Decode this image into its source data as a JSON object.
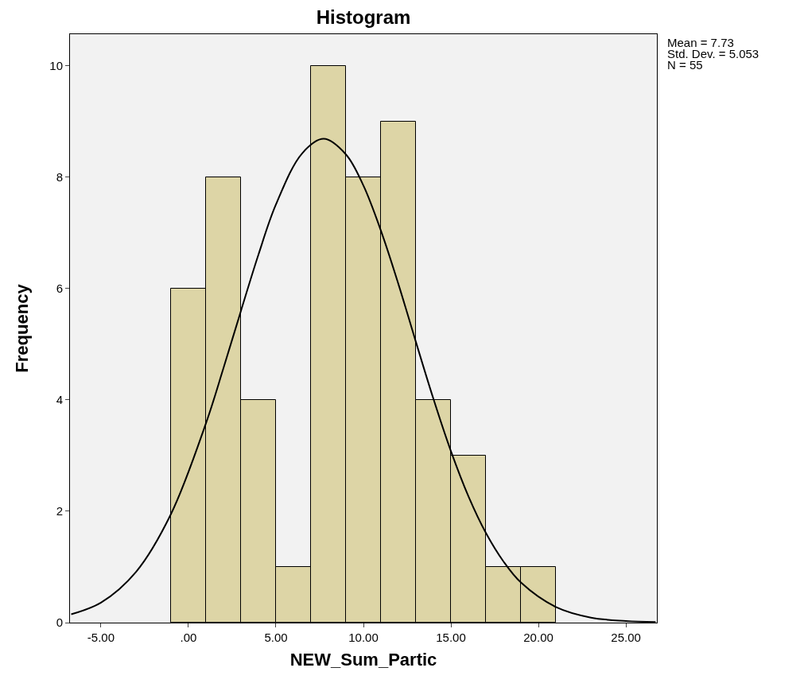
{
  "chart_data": {
    "type": "histogram",
    "title": "Histogram",
    "xlabel": "NEW_Sum_Partic",
    "ylabel": "Frequency",
    "bins": [
      -1,
      1,
      3,
      5,
      7,
      9,
      11,
      13,
      15,
      17,
      19,
      21
    ],
    "values": [
      6,
      8,
      4,
      1,
      10,
      8,
      9,
      4,
      3,
      1,
      1
    ],
    "color": "#ddd5a6",
    "series": [
      {
        "type": "line",
        "color": "#000000",
        "x": [
          -6.7,
          -5,
          -3,
          -1,
          1,
          2,
          3,
          4,
          5,
          6.5,
          7.73,
          9,
          10,
          11,
          12,
          13,
          14,
          15,
          16,
          17,
          18,
          19,
          21,
          23,
          25,
          26.7
        ],
        "values": [
          0.15,
          0.36,
          0.91,
          1.95,
          3.58,
          4.57,
          5.6,
          6.61,
          7.51,
          8.43,
          8.69,
          8.41,
          7.85,
          7.04,
          6.08,
          5.04,
          4.02,
          3.08,
          2.27,
          1.61,
          1.1,
          0.72,
          0.28,
          0.09,
          0.03,
          0.01
        ]
      }
    ],
    "xlim": [
      -6.77,
      26.77
    ],
    "xticks": [
      {
        "value": -5,
        "label": "-5.00"
      },
      {
        "value": 0,
        "label": ".00"
      },
      {
        "value": 5,
        "label": "5.00"
      },
      {
        "value": 10,
        "label": "10.00"
      },
      {
        "value": 15,
        "label": "15.00"
      },
      {
        "value": 20,
        "label": "20.00"
      },
      {
        "value": 25,
        "label": "25.00"
      }
    ],
    "ylim": [
      0,
      10.57
    ],
    "yticks": [
      0,
      2,
      4,
      6,
      8,
      10
    ],
    "grid": false,
    "marker": "none",
    "line_style": "solid",
    "annotations": [
      "Mean = 7.73",
      "Std. Dev. = 5.053",
      "N = 55"
    ]
  }
}
